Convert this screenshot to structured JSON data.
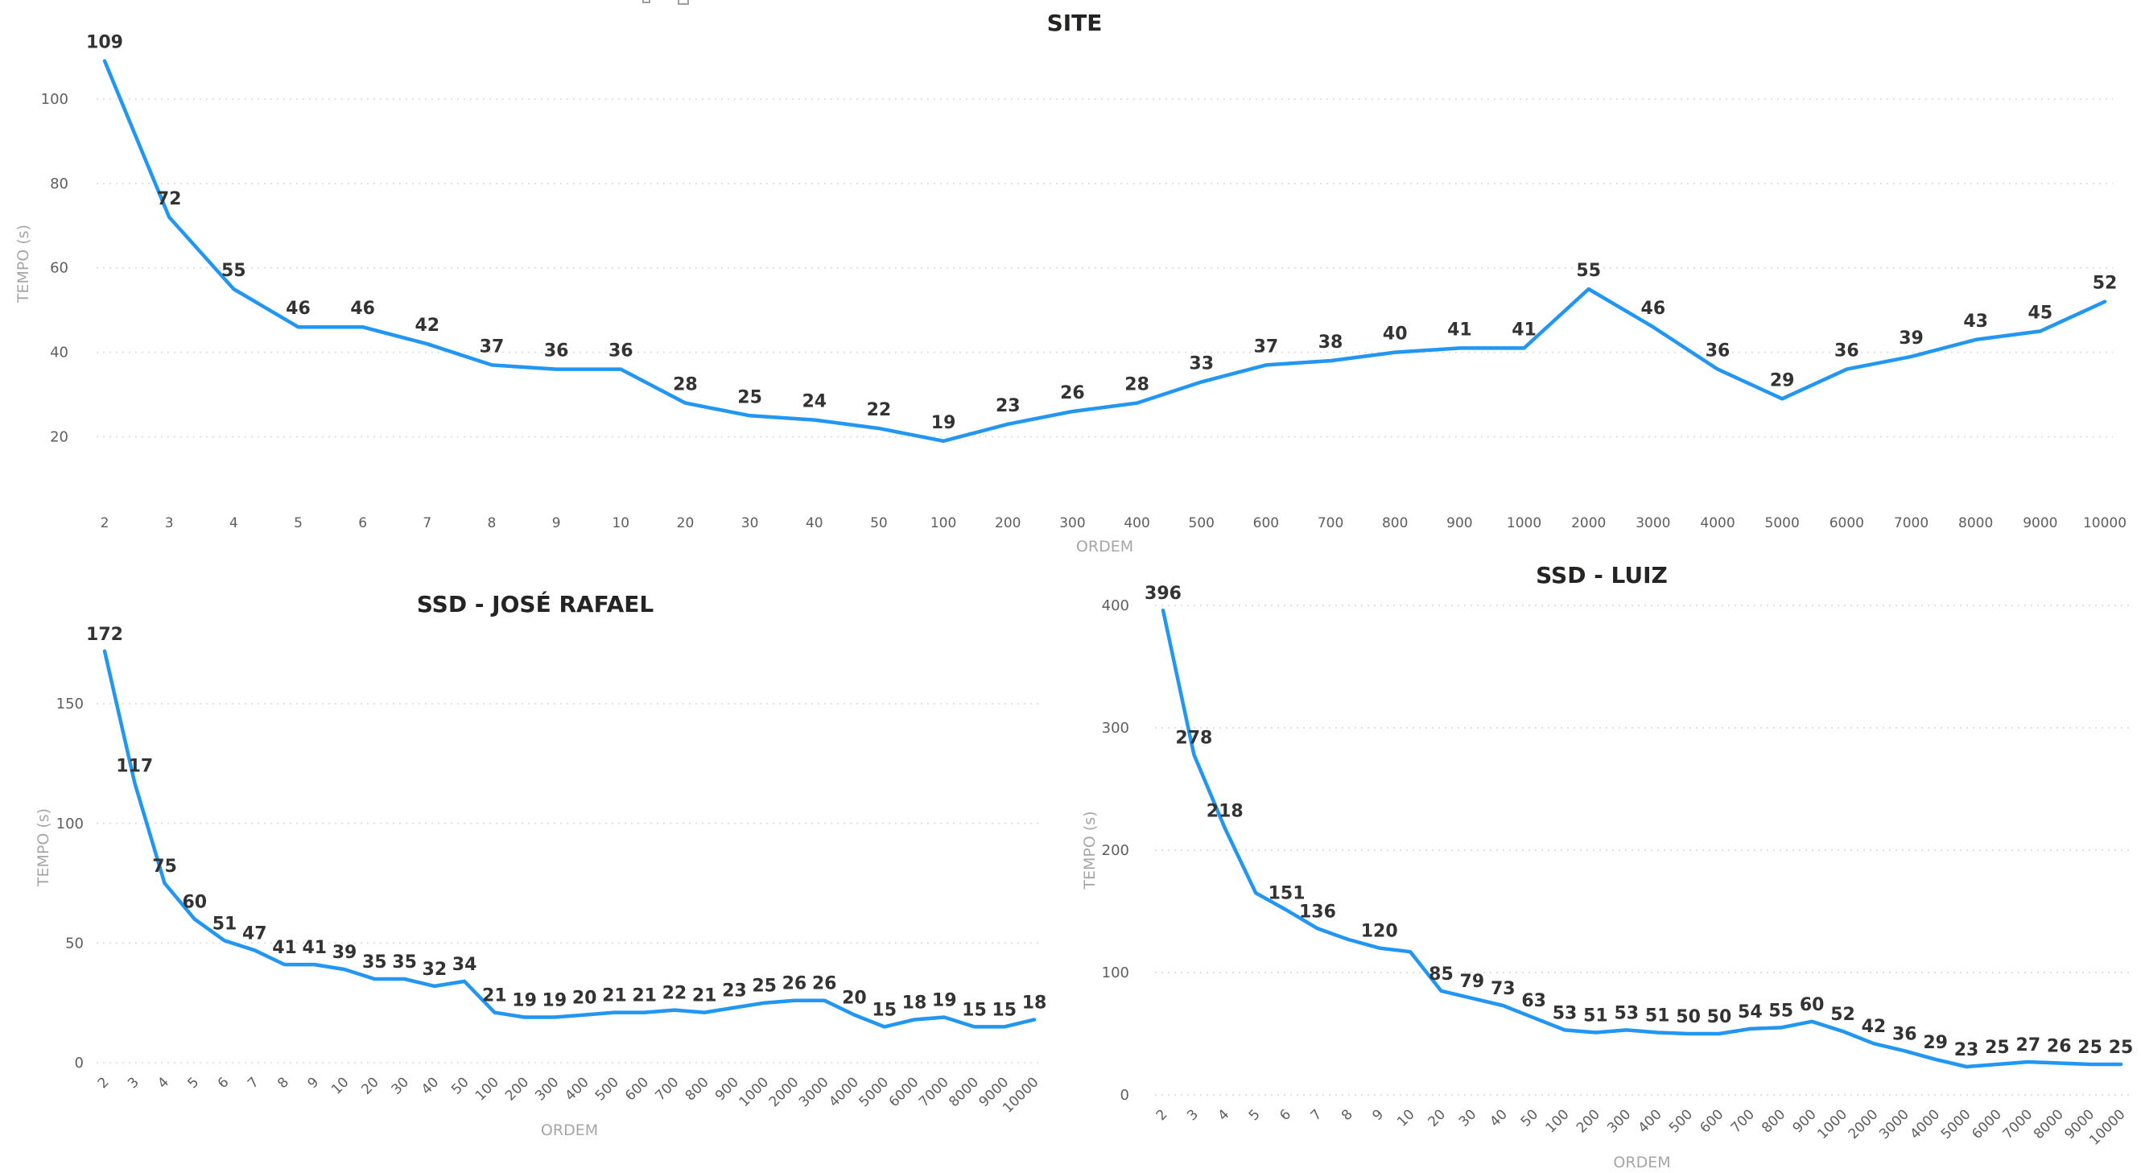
{
  "accent_color": "#2196f3",
  "toolbar": {
    "icons": [
      "focus-mode-icon",
      "more-options-icon"
    ]
  },
  "chart_data": [
    {
      "id": "site",
      "type": "line",
      "title": "SITE",
      "xlabel": "ORDEM",
      "ylabel": "TEMPO (s)",
      "ylim": [
        10,
        112
      ],
      "yticks": [
        20,
        40,
        60,
        80,
        100
      ],
      "grid": true,
      "x_tick_rotation": 0,
      "categories": [
        "2",
        "3",
        "4",
        "5",
        "6",
        "7",
        "8",
        "9",
        "10",
        "20",
        "30",
        "40",
        "50",
        "100",
        "200",
        "300",
        "400",
        "500",
        "600",
        "700",
        "800",
        "900",
        "1000",
        "2000",
        "3000",
        "4000",
        "5000",
        "6000",
        "7000",
        "8000",
        "9000",
        "10000"
      ],
      "values": [
        109,
        72,
        55,
        46,
        46,
        42,
        37,
        36,
        36,
        28,
        25,
        24,
        22,
        19,
        23,
        26,
        28,
        33,
        37,
        38,
        40,
        41,
        41,
        55,
        46,
        36,
        29,
        36,
        39,
        43,
        45,
        52
      ]
    },
    {
      "id": "jose",
      "type": "line",
      "title": "SSD - JOSÉ RAFAEL",
      "xlabel": "ORDEM",
      "ylabel": "TEMPO (s)",
      "ylim": [
        0,
        180
      ],
      "yticks": [
        0,
        50,
        100,
        150
      ],
      "grid": true,
      "x_tick_rotation": -45,
      "categories": [
        "2",
        "3",
        "4",
        "5",
        "6",
        "7",
        "8",
        "9",
        "10",
        "20",
        "30",
        "40",
        "50",
        "100",
        "200",
        "300",
        "400",
        "500",
        "600",
        "700",
        "800",
        "900",
        "1000",
        "2000",
        "3000",
        "4000",
        "5000",
        "6000",
        "7000",
        "8000",
        "9000",
        "10000"
      ],
      "values": [
        172,
        117,
        75,
        60,
        51,
        47,
        41,
        41,
        39,
        35,
        35,
        32,
        34,
        21,
        19,
        19,
        20,
        21,
        21,
        22,
        21,
        23,
        25,
        26,
        26,
        20,
        15,
        18,
        19,
        15,
        15,
        18
      ]
    },
    {
      "id": "luiz",
      "type": "line",
      "title": "SSD - LUIZ",
      "xlabel": "ORDEM",
      "ylabel": "TEMPO (s)",
      "ylim": [
        0,
        400
      ],
      "yticks": [
        0,
        100,
        200,
        300,
        400
      ],
      "grid": true,
      "x_tick_rotation": -45,
      "categories": [
        "2",
        "3",
        "4",
        "5",
        "6",
        "7",
        "8",
        "9",
        "10",
        "20",
        "30",
        "40",
        "50",
        "100",
        "200",
        "300",
        "400",
        "500",
        "600",
        "700",
        "800",
        "900",
        "1000",
        "2000",
        "3000",
        "4000",
        "5000",
        "6000",
        "7000",
        "8000",
        "9000",
        "10000"
      ],
      "values": [
        396,
        278,
        218,
        165,
        151,
        136,
        127,
        120,
        117,
        85,
        79,
        73,
        63,
        53,
        51,
        53,
        51,
        50,
        50,
        54,
        55,
        60,
        52,
        42,
        36,
        29,
        23,
        25,
        27,
        26,
        25,
        25
      ],
      "labels": [
        "396",
        "278",
        "218",
        "",
        "151",
        "136",
        "",
        "120",
        "",
        "85",
        "79",
        "73",
        "63",
        "53",
        "51",
        "53",
        "51",
        "50",
        "50",
        "54",
        "55",
        "60",
        "52",
        "42",
        "36",
        "29",
        "23",
        "25",
        "27",
        "26",
        "25",
        "25"
      ]
    }
  ]
}
